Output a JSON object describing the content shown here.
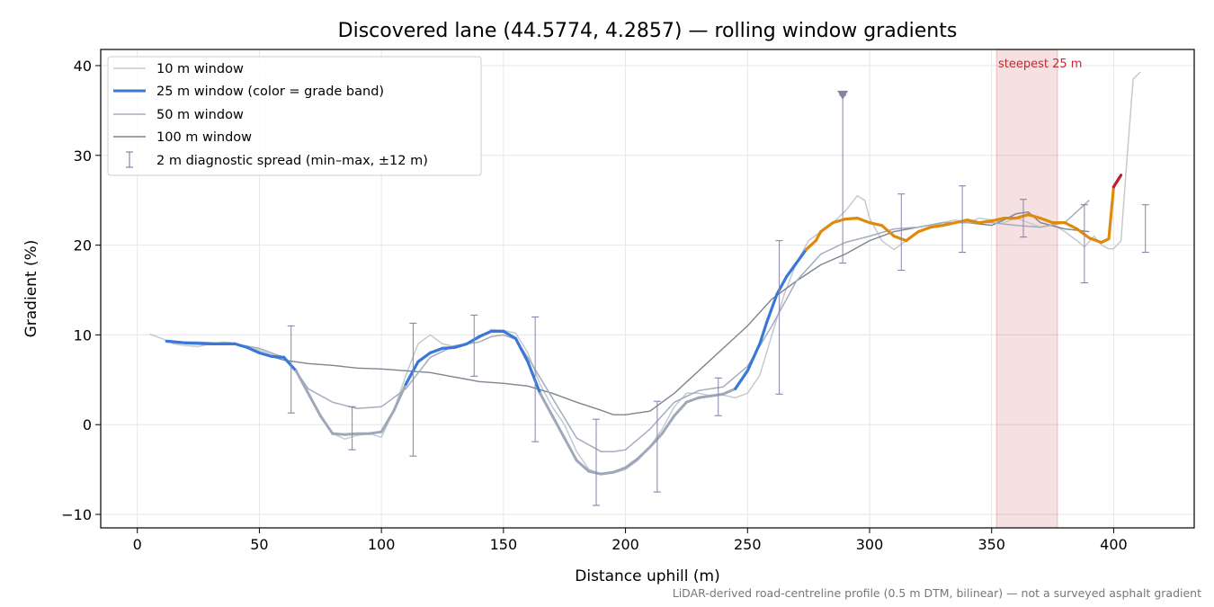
{
  "chart_data": {
    "type": "line",
    "title": "Discovered lane (44.5774, 4.2857) — rolling window gradients",
    "xlabel": "Distance uphill (m)",
    "ylabel": "Gradient (%)",
    "xlim": [
      -15,
      433
    ],
    "ylim": [
      -11.5,
      41.8
    ],
    "xticks": [
      0,
      50,
      100,
      150,
      200,
      250,
      300,
      350,
      400
    ],
    "yticks": [
      -10,
      0,
      10,
      20,
      30,
      40
    ],
    "xtick_labels": [
      "0",
      "50",
      "100",
      "150",
      "200",
      "250",
      "300",
      "350",
      "400"
    ],
    "ytick_labels": [
      "−10",
      "0",
      "10",
      "20",
      "30",
      "40"
    ],
    "grid": true,
    "legend_position": "upper-left",
    "legend": [
      {
        "label": "10 m window",
        "color": "#c4c9d3",
        "style": "line"
      },
      {
        "label": "25 m window (color = grade band)",
        "color": "#3a78d8",
        "style": "thick-line"
      },
      {
        "label": "50 m window",
        "color": "#a4adbd",
        "style": "line"
      },
      {
        "label": "100 m window",
        "color": "#7e8492",
        "style": "line"
      },
      {
        "label": "2 m diagnostic spread (min–max, ±12 m)",
        "color": "#8b82aa",
        "style": "errorbar"
      }
    ],
    "highlight_region": {
      "x": [
        352,
        377
      ],
      "label": "steepest 25 m",
      "color": "#c22a35"
    },
    "footnote": "LiDAR-derived road-centreline profile (0.5 m DTM, bilinear) — not a surveyed asphalt gradient",
    "colors": {
      "band_0_5": "#9ea8b8",
      "band_5_20": "#3a78d8",
      "band_20_25": "#e08a0b",
      "band_25_plus": "#c01e2a"
    },
    "series": [
      {
        "name": "10 m window",
        "color": "#c4c9d3",
        "x": [
          5,
          10,
          15,
          20,
          25,
          30,
          35,
          40,
          45,
          50,
          55,
          60,
          65,
          70,
          75,
          80,
          85,
          90,
          95,
          100,
          105,
          110,
          115,
          120,
          125,
          130,
          135,
          140,
          145,
          150,
          155,
          160,
          165,
          170,
          175,
          180,
          185,
          190,
          195,
          200,
          205,
          210,
          215,
          220,
          225,
          230,
          235,
          240,
          245,
          250,
          255,
          260,
          265,
          270,
          275,
          280,
          285,
          290,
          295,
          298,
          300,
          305,
          310,
          315,
          320,
          325,
          330,
          335,
          340,
          345,
          350,
          355,
          360,
          365,
          370,
          375,
          380,
          385,
          388,
          392,
          395,
          398,
          400,
          403,
          405,
          408,
          411
        ],
        "y": [
          10.1,
          9.6,
          9.0,
          8.8,
          8.7,
          9.0,
          9.2,
          9.1,
          8.6,
          8.3,
          7.8,
          7.5,
          6.0,
          3.5,
          1.0,
          -1.0,
          -1.6,
          -1.2,
          -1.0,
          -1.4,
          1.5,
          5.5,
          9.0,
          10.0,
          9.0,
          8.7,
          9.0,
          9.6,
          10.6,
          10.5,
          10.2,
          8.0,
          4.5,
          2.0,
          0.0,
          -3.0,
          -5.0,
          -5.5,
          -5.4,
          -5.0,
          -4.0,
          -2.5,
          -0.5,
          2.0,
          3.5,
          3.5,
          3.2,
          3.3,
          3.0,
          3.5,
          5.5,
          10.0,
          14.5,
          18.0,
          20.5,
          21.5,
          22.5,
          23.8,
          25.5,
          25.0,
          23.0,
          20.5,
          19.5,
          20.5,
          21.5,
          22.0,
          22.5,
          22.8,
          22.5,
          23.0,
          22.8,
          22.5,
          23.0,
          22.5,
          22.0,
          22.3,
          21.5,
          20.5,
          19.8,
          21.0,
          20.0,
          19.6,
          19.6,
          20.5,
          28.0,
          38.5,
          39.3
        ]
      },
      {
        "name": "25 m window",
        "color": "#9ea8b8",
        "x": [
          12,
          20,
          30,
          40,
          45,
          50,
          55,
          60,
          65,
          70,
          75,
          80,
          85,
          90,
          95,
          100,
          105,
          110,
          115,
          120,
          125,
          130,
          135,
          140,
          145,
          150,
          155,
          160,
          165,
          170,
          175,
          180,
          185,
          190,
          195,
          200,
          205,
          210,
          215,
          220,
          225,
          230,
          235,
          240,
          245,
          250,
          255,
          258,
          262,
          266,
          270,
          274,
          278,
          280,
          285,
          290,
          295,
          300,
          305,
          310,
          315,
          320,
          325,
          330,
          335,
          340,
          345,
          350,
          355,
          360,
          365,
          370,
          375,
          380,
          385,
          390,
          395,
          398,
          400,
          403
        ],
        "y": [
          9.3,
          9.1,
          9.0,
          9.0,
          8.6,
          8.0,
          7.6,
          7.5,
          6.0,
          3.5,
          1.0,
          -1.0,
          -1.1,
          -1.0,
          -1.0,
          -0.8,
          1.5,
          4.5,
          7.0,
          8.0,
          8.5,
          8.6,
          9.0,
          9.8,
          10.4,
          10.4,
          9.6,
          7.0,
          3.5,
          1.0,
          -1.5,
          -4.0,
          -5.2,
          -5.5,
          -5.3,
          -4.8,
          -3.8,
          -2.5,
          -1.0,
          1.0,
          2.5,
          3.0,
          3.2,
          3.4,
          4.0,
          6.0,
          9.0,
          11.5,
          14.5,
          16.5,
          18.0,
          19.5,
          20.5,
          21.5,
          22.5,
          22.9,
          23.0,
          22.5,
          22.2,
          21.0,
          20.5,
          21.5,
          22.0,
          22.2,
          22.5,
          22.8,
          22.5,
          22.7,
          23.0,
          23.0,
          23.4,
          23.0,
          22.5,
          22.5,
          21.8,
          20.8,
          20.3,
          20.7,
          26.5,
          27.8
        ]
      },
      {
        "name": "50 m window",
        "color": "#a4adbd",
        "x": [
          12,
          25,
          40,
          50,
          55,
          60,
          65,
          70,
          80,
          90,
          100,
          110,
          120,
          130,
          140,
          145,
          150,
          155,
          160,
          170,
          180,
          190,
          195,
          200,
          210,
          220,
          230,
          240,
          250,
          260,
          270,
          280,
          290,
          300,
          310,
          320,
          330,
          340,
          350,
          360,
          370,
          380,
          390
        ],
        "y": [
          9.2,
          9.2,
          9.0,
          8.5,
          8.0,
          7.5,
          6.0,
          4.0,
          2.5,
          1.8,
          2.0,
          4.0,
          7.5,
          8.8,
          9.2,
          9.8,
          10.0,
          9.5,
          7.5,
          3.0,
          -1.5,
          -3.0,
          -3.0,
          -2.8,
          -0.5,
          2.5,
          3.8,
          4.2,
          6.5,
          11.0,
          16.0,
          19.0,
          20.3,
          21.0,
          21.8,
          22.0,
          22.5,
          22.5,
          22.5,
          22.2,
          22.0,
          22.5,
          25.0
        ]
      },
      {
        "name": "100 m window",
        "color": "#7e8492",
        "x": [
          12,
          25,
          40,
          50,
          60,
          70,
          80,
          90,
          100,
          110,
          120,
          130,
          140,
          150,
          160,
          170,
          180,
          190,
          195,
          200,
          210,
          220,
          230,
          240,
          250,
          260,
          270,
          280,
          290,
          300,
          310,
          320,
          330,
          340,
          350,
          355,
          360,
          365,
          370,
          380,
          390
        ],
        "y": [
          9.3,
          9.0,
          8.5,
          8.0,
          7.2,
          6.8,
          6.6,
          6.3,
          6.2,
          6.0,
          5.8,
          5.3,
          4.8,
          4.6,
          4.3,
          3.5,
          2.5,
          1.6,
          1.1,
          1.1,
          1.5,
          3.5,
          6.0,
          8.5,
          11.0,
          14.0,
          16.0,
          17.8,
          19.0,
          20.5,
          21.5,
          22.0,
          22.5,
          22.5,
          22.2,
          22.8,
          23.5,
          23.7,
          22.5,
          21.8,
          21.5
        ]
      }
    ],
    "series_100m_x_start": 50,
    "errorbars": [
      {
        "x": 63,
        "min": 1.3,
        "max": 11.0
      },
      {
        "x": 88,
        "min": -2.8,
        "max": 2.0
      },
      {
        "x": 113,
        "min": -3.5,
        "max": 11.3
      },
      {
        "x": 138,
        "min": 5.4,
        "max": 12.2
      },
      {
        "x": 163,
        "min": -1.9,
        "max": 12.0
      },
      {
        "x": 188,
        "min": -9.0,
        "max": 0.6
      },
      {
        "x": 213,
        "min": -7.5,
        "max": 2.6
      },
      {
        "x": 238,
        "min": 1.0,
        "max": 5.2
      },
      {
        "x": 263,
        "min": 3.4,
        "max": 20.5
      },
      {
        "x": 289,
        "min": 18.0,
        "max": 36.7
      },
      {
        "x": 313,
        "min": 17.2,
        "max": 25.7
      },
      {
        "x": 338,
        "min": 19.2,
        "max": 26.6
      },
      {
        "x": 363,
        "min": 20.9,
        "max": 25.1
      },
      {
        "x": 388,
        "min": 15.8,
        "max": 24.5
      },
      {
        "x": 413,
        "min": 19.2,
        "max": 24.5
      }
    ],
    "marker": {
      "x": 289,
      "y": 36.7,
      "shape": "triangle-down",
      "color": "#8b7fa8"
    }
  }
}
